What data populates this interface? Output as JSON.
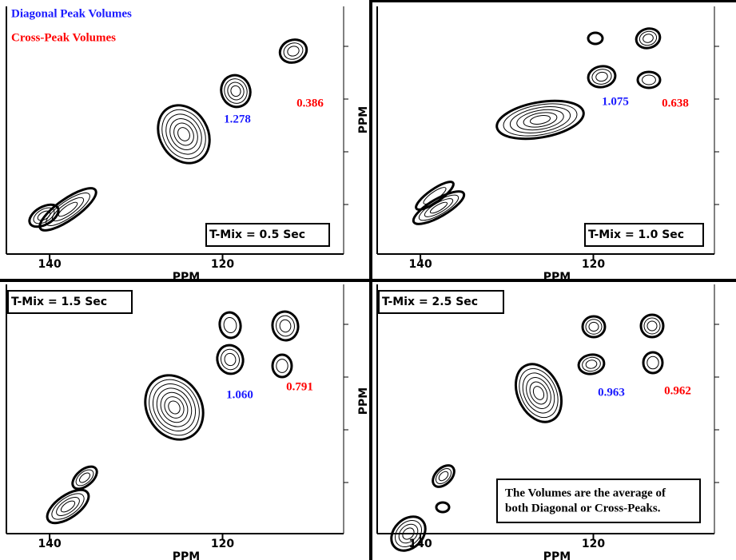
{
  "chart_data": [
    {
      "type": "contour",
      "label": "T-Mix = 0.5 Sec",
      "xlabel": "PPM",
      "ylabel": "PPM",
      "xlim": [
        145,
        106
      ],
      "xticks": [
        140,
        120
      ],
      "series": [
        {
          "name": "Diagonal Peak Volumes",
          "color": "#1a1aff",
          "values": [
            1.278
          ],
          "value_labels": [
            "1.278"
          ]
        },
        {
          "name": "Cross-Peak Volumes",
          "color": "#ff0000",
          "values": [
            0.386
          ],
          "value_labels": [
            "0.386"
          ]
        }
      ]
    },
    {
      "type": "contour",
      "label": "T-Mix = 1.0 Sec",
      "xlabel": "PPM",
      "xlim": [
        145,
        106
      ],
      "xticks": [
        140,
        120
      ],
      "series": [
        {
          "color": "#1a1aff",
          "values": [
            1.075
          ],
          "value_labels": [
            "1.075"
          ]
        },
        {
          "color": "#ff0000",
          "values": [
            0.638
          ],
          "value_labels": [
            "0.638"
          ]
        }
      ]
    },
    {
      "type": "contour",
      "label": "T-Mix = 1.5 Sec",
      "xlabel": "PPM",
      "ylabel": "PPM",
      "xlim": [
        145,
        106
      ],
      "xticks": [
        140,
        120
      ],
      "series": [
        {
          "color": "#1a1aff",
          "values": [
            1.06
          ],
          "value_labels": [
            "1.060"
          ]
        },
        {
          "color": "#ff0000",
          "values": [
            0.791
          ],
          "value_labels": [
            "0.791"
          ]
        }
      ]
    },
    {
      "type": "contour",
      "label": "T-Mix = 2.5 Sec",
      "xlabel": "PPM",
      "xlim": [
        145,
        106
      ],
      "xticks": [
        140,
        120
      ],
      "note": [
        "The Volumes are the average of",
        "both Diagonal or Cross-Peaks."
      ],
      "series": [
        {
          "color": "#1a1aff",
          "values": [
            0.963
          ],
          "value_labels": [
            "0.963"
          ]
        },
        {
          "color": "#ff0000",
          "values": [
            0.962
          ],
          "value_labels": [
            "0.962"
          ]
        }
      ]
    }
  ]
}
